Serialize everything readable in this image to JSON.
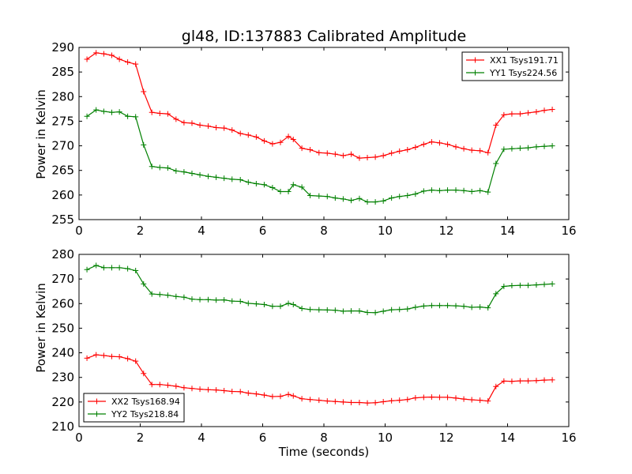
{
  "chart_data": [
    {
      "type": "line",
      "title": "gl48, ID:137883 Calibrated Amplitude",
      "xlabel": "",
      "ylabel": "Power in Kelvin",
      "xlim": [
        0,
        16
      ],
      "ylim": [
        255,
        290
      ],
      "xticks": [
        "0",
        "2",
        "4",
        "6",
        "8",
        "10",
        "12",
        "14",
        "16"
      ],
      "yticks": [
        "255",
        "260",
        "265",
        "270",
        "275",
        "280",
        "285",
        "290"
      ],
      "legend": "top-right",
      "grid": false,
      "x": [
        0.26,
        0.56,
        0.81,
        1.07,
        1.32,
        1.59,
        1.85,
        2.11,
        2.38,
        2.64,
        2.9,
        3.17,
        3.43,
        3.69,
        3.95,
        4.22,
        4.48,
        4.74,
        5.0,
        5.27,
        5.53,
        5.79,
        6.05,
        6.32,
        6.58,
        6.84,
        7.0,
        7.28,
        7.55,
        7.84,
        8.11,
        8.37,
        8.63,
        8.89,
        9.16,
        9.42,
        9.68,
        9.94,
        10.21,
        10.47,
        10.73,
        10.99,
        11.26,
        11.52,
        11.78,
        12.04,
        12.31,
        12.57,
        12.83,
        13.1,
        13.36,
        13.62,
        13.88,
        14.14,
        14.41,
        14.67,
        14.94,
        15.2,
        15.46
      ],
      "series": [
        {
          "name": "XX1 Tsys191.71",
          "color": "#ff0000",
          "values": [
            287.6,
            288.9,
            288.7,
            288.4,
            287.6,
            287.0,
            286.6,
            281.0,
            276.8,
            276.6,
            276.5,
            275.4,
            274.7,
            274.6,
            274.2,
            274.0,
            273.7,
            273.6,
            273.2,
            272.5,
            272.2,
            271.8,
            271.0,
            270.4,
            270.7,
            271.9,
            271.3,
            269.5,
            269.2,
            268.6,
            268.5,
            268.3,
            268.0,
            268.3,
            267.5,
            267.6,
            267.7,
            268.0,
            268.5,
            268.9,
            269.2,
            269.7,
            270.3,
            270.8,
            270.6,
            270.3,
            269.8,
            269.4,
            269.1,
            269.0,
            268.6,
            274.2,
            276.3,
            276.5,
            276.5,
            276.7,
            276.9,
            277.2,
            277.4
          ]
        },
        {
          "name": "YY1 Tsys224.56",
          "color": "#008000",
          "values": [
            276.0,
            277.3,
            277.0,
            276.8,
            276.9,
            276.0,
            275.9,
            270.2,
            265.8,
            265.6,
            265.5,
            264.9,
            264.7,
            264.4,
            264.1,
            263.8,
            263.6,
            263.4,
            263.2,
            263.1,
            262.6,
            262.3,
            262.1,
            261.5,
            260.7,
            260.7,
            262.1,
            261.6,
            259.9,
            259.8,
            259.7,
            259.4,
            259.2,
            258.9,
            259.3,
            258.6,
            258.6,
            258.8,
            259.4,
            259.7,
            259.9,
            260.2,
            260.8,
            261.0,
            260.9,
            261.0,
            261.0,
            260.9,
            260.7,
            260.9,
            260.6,
            266.4,
            269.3,
            269.4,
            269.5,
            269.6,
            269.8,
            269.9,
            270.0
          ]
        }
      ]
    },
    {
      "type": "line",
      "title": "",
      "xlabel": "Time (seconds)",
      "ylabel": "Power in Kelvin",
      "xlim": [
        0,
        16
      ],
      "ylim": [
        210,
        280
      ],
      "xticks": [
        "0",
        "2",
        "4",
        "6",
        "8",
        "10",
        "12",
        "14",
        "16"
      ],
      "yticks": [
        "210",
        "220",
        "230",
        "240",
        "250",
        "260",
        "270",
        "280"
      ],
      "legend": "bottom-left",
      "grid": false,
      "x": [
        0.26,
        0.56,
        0.81,
        1.07,
        1.32,
        1.59,
        1.85,
        2.11,
        2.38,
        2.64,
        2.9,
        3.17,
        3.43,
        3.69,
        3.95,
        4.22,
        4.48,
        4.74,
        5.0,
        5.27,
        5.53,
        5.79,
        6.05,
        6.32,
        6.58,
        6.84,
        7.0,
        7.28,
        7.55,
        7.84,
        8.11,
        8.37,
        8.63,
        8.89,
        9.16,
        9.42,
        9.68,
        9.94,
        10.21,
        10.47,
        10.73,
        10.99,
        11.26,
        11.52,
        11.78,
        12.04,
        12.31,
        12.57,
        12.83,
        13.1,
        13.36,
        13.62,
        13.88,
        14.14,
        14.41,
        14.67,
        14.94,
        15.2,
        15.46
      ],
      "series": [
        {
          "name": "XX2 Tsys168.94",
          "color": "#ff0000",
          "values": [
            237.8,
            239.2,
            238.9,
            238.5,
            238.4,
            237.6,
            236.6,
            231.6,
            227.1,
            227.1,
            226.8,
            226.4,
            225.8,
            225.5,
            225.2,
            225.0,
            224.9,
            224.6,
            224.3,
            224.2,
            223.6,
            223.3,
            222.8,
            222.2,
            222.3,
            223.1,
            222.5,
            221.3,
            221.0,
            220.7,
            220.4,
            220.2,
            220.0,
            219.8,
            219.8,
            219.6,
            219.7,
            220.1,
            220.5,
            220.7,
            221.0,
            221.7,
            221.9,
            222.0,
            221.9,
            221.9,
            221.6,
            221.2,
            220.9,
            220.7,
            220.4,
            226.3,
            228.5,
            228.4,
            228.6,
            228.6,
            228.7,
            228.9,
            229.0
          ]
        },
        {
          "name": "YY2 Tsys218.84",
          "color": "#008000",
          "values": [
            273.8,
            275.5,
            274.6,
            274.6,
            274.6,
            274.2,
            273.4,
            268.0,
            263.9,
            263.7,
            263.4,
            262.9,
            262.6,
            261.8,
            261.6,
            261.6,
            261.4,
            261.5,
            261.0,
            260.9,
            260.1,
            259.9,
            259.6,
            258.9,
            258.9,
            260.1,
            259.6,
            258.0,
            257.6,
            257.5,
            257.4,
            257.3,
            256.9,
            257.0,
            257.0,
            256.4,
            256.3,
            256.9,
            257.5,
            257.6,
            257.8,
            258.5,
            259.0,
            259.2,
            259.2,
            259.2,
            259.1,
            258.9,
            258.5,
            258.6,
            258.3,
            264.0,
            267.0,
            267.3,
            267.4,
            267.4,
            267.6,
            267.8,
            268.0
          ]
        }
      ]
    }
  ]
}
